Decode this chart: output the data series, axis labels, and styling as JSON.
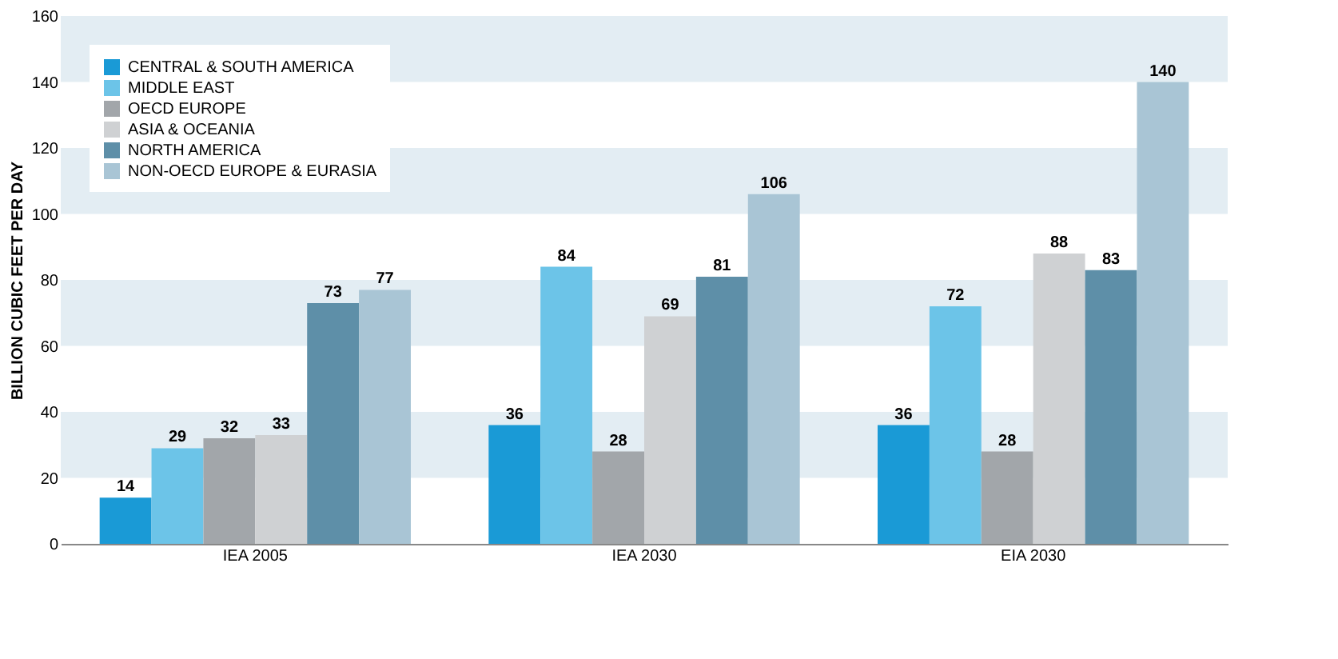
{
  "chart_data": {
    "type": "bar",
    "ylabel": "BILLION CUBIC FEET PER DAY",
    "categories": [
      "IEA 2005",
      "IEA 2030",
      "EIA 2030"
    ],
    "series": [
      {
        "name": "CENTRAL & SOUTH AMERICA",
        "color": "#1a9ad6",
        "values": [
          14,
          36,
          36
        ]
      },
      {
        "name": "MIDDLE EAST",
        "color": "#6cc4e8",
        "values": [
          29,
          84,
          72
        ]
      },
      {
        "name": "OECD EUROPE",
        "color": "#a2a6aa",
        "values": [
          32,
          28,
          28
        ]
      },
      {
        "name": "ASIA & OCEANIA",
        "color": "#cfd1d3",
        "values": [
          33,
          69,
          88
        ]
      },
      {
        "name": "NORTH AMERICA",
        "color": "#5e8fa8",
        "values": [
          73,
          81,
          83
        ]
      },
      {
        "name": "NON-OECD EUROPE & EURASIA",
        "color": "#a9c5d5",
        "values": [
          77,
          106,
          140
        ]
      }
    ],
    "ylim": [
      0,
      160
    ],
    "yticks": [
      0,
      20,
      40,
      60,
      80,
      100,
      120,
      140,
      160
    ],
    "bands": [
      {
        "axis": "y",
        "from": 20,
        "to": 40,
        "color": "#e3edf3"
      },
      {
        "axis": "y",
        "from": 60,
        "to": 80,
        "color": "#e3edf3"
      },
      {
        "axis": "y",
        "from": 100,
        "to": 120,
        "color": "#e3edf3"
      },
      {
        "axis": "y",
        "from": 140,
        "to": 160,
        "color": "#e3edf3"
      }
    ],
    "data_labels": true,
    "legend": "top left",
    "grid": false
  }
}
